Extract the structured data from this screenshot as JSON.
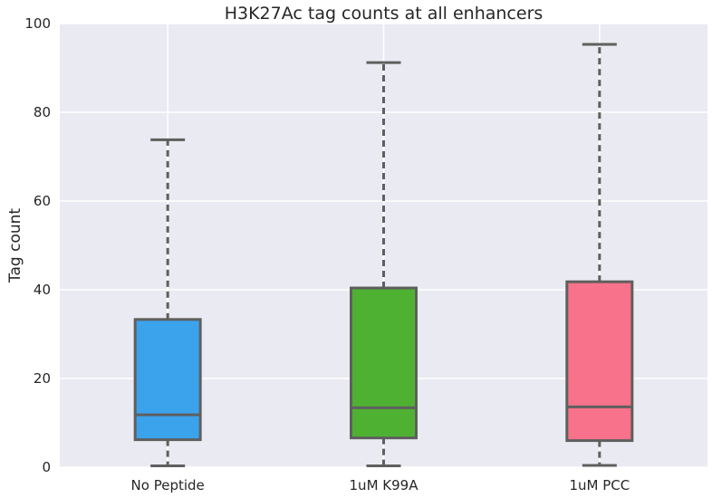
{
  "chart_data": {
    "type": "box",
    "title": "H3K27Ac tag counts at all enhancers",
    "xlabel": "",
    "ylabel": "Tag count",
    "ylim": [
      0,
      100
    ],
    "yticks": [
      0,
      20,
      40,
      60,
      80,
      100
    ],
    "grid": true,
    "categories": [
      "No Peptide",
      "1uM K99A",
      "1uM PCC"
    ],
    "boxes": [
      {
        "category": "No Peptide",
        "whisker_low": 0.3,
        "q1": 6.2,
        "median": 11.8,
        "q3": 33.3,
        "whisker_high": 73.8,
        "color": "#3ba3ec"
      },
      {
        "category": "1uM K99A",
        "whisker_low": 0.3,
        "q1": 6.6,
        "median": 13.4,
        "q3": 40.4,
        "whisker_high": 91.2,
        "color": "#4fb132"
      },
      {
        "category": "1uM PCC",
        "whisker_low": 0.4,
        "q1": 6.0,
        "median": 13.6,
        "q3": 41.8,
        "whisker_high": 95.3,
        "color": "#f7728a"
      }
    ],
    "colors": {
      "background": "#eaeaf2",
      "grid": "#ffffff",
      "line": "#5f5f5f"
    }
  }
}
